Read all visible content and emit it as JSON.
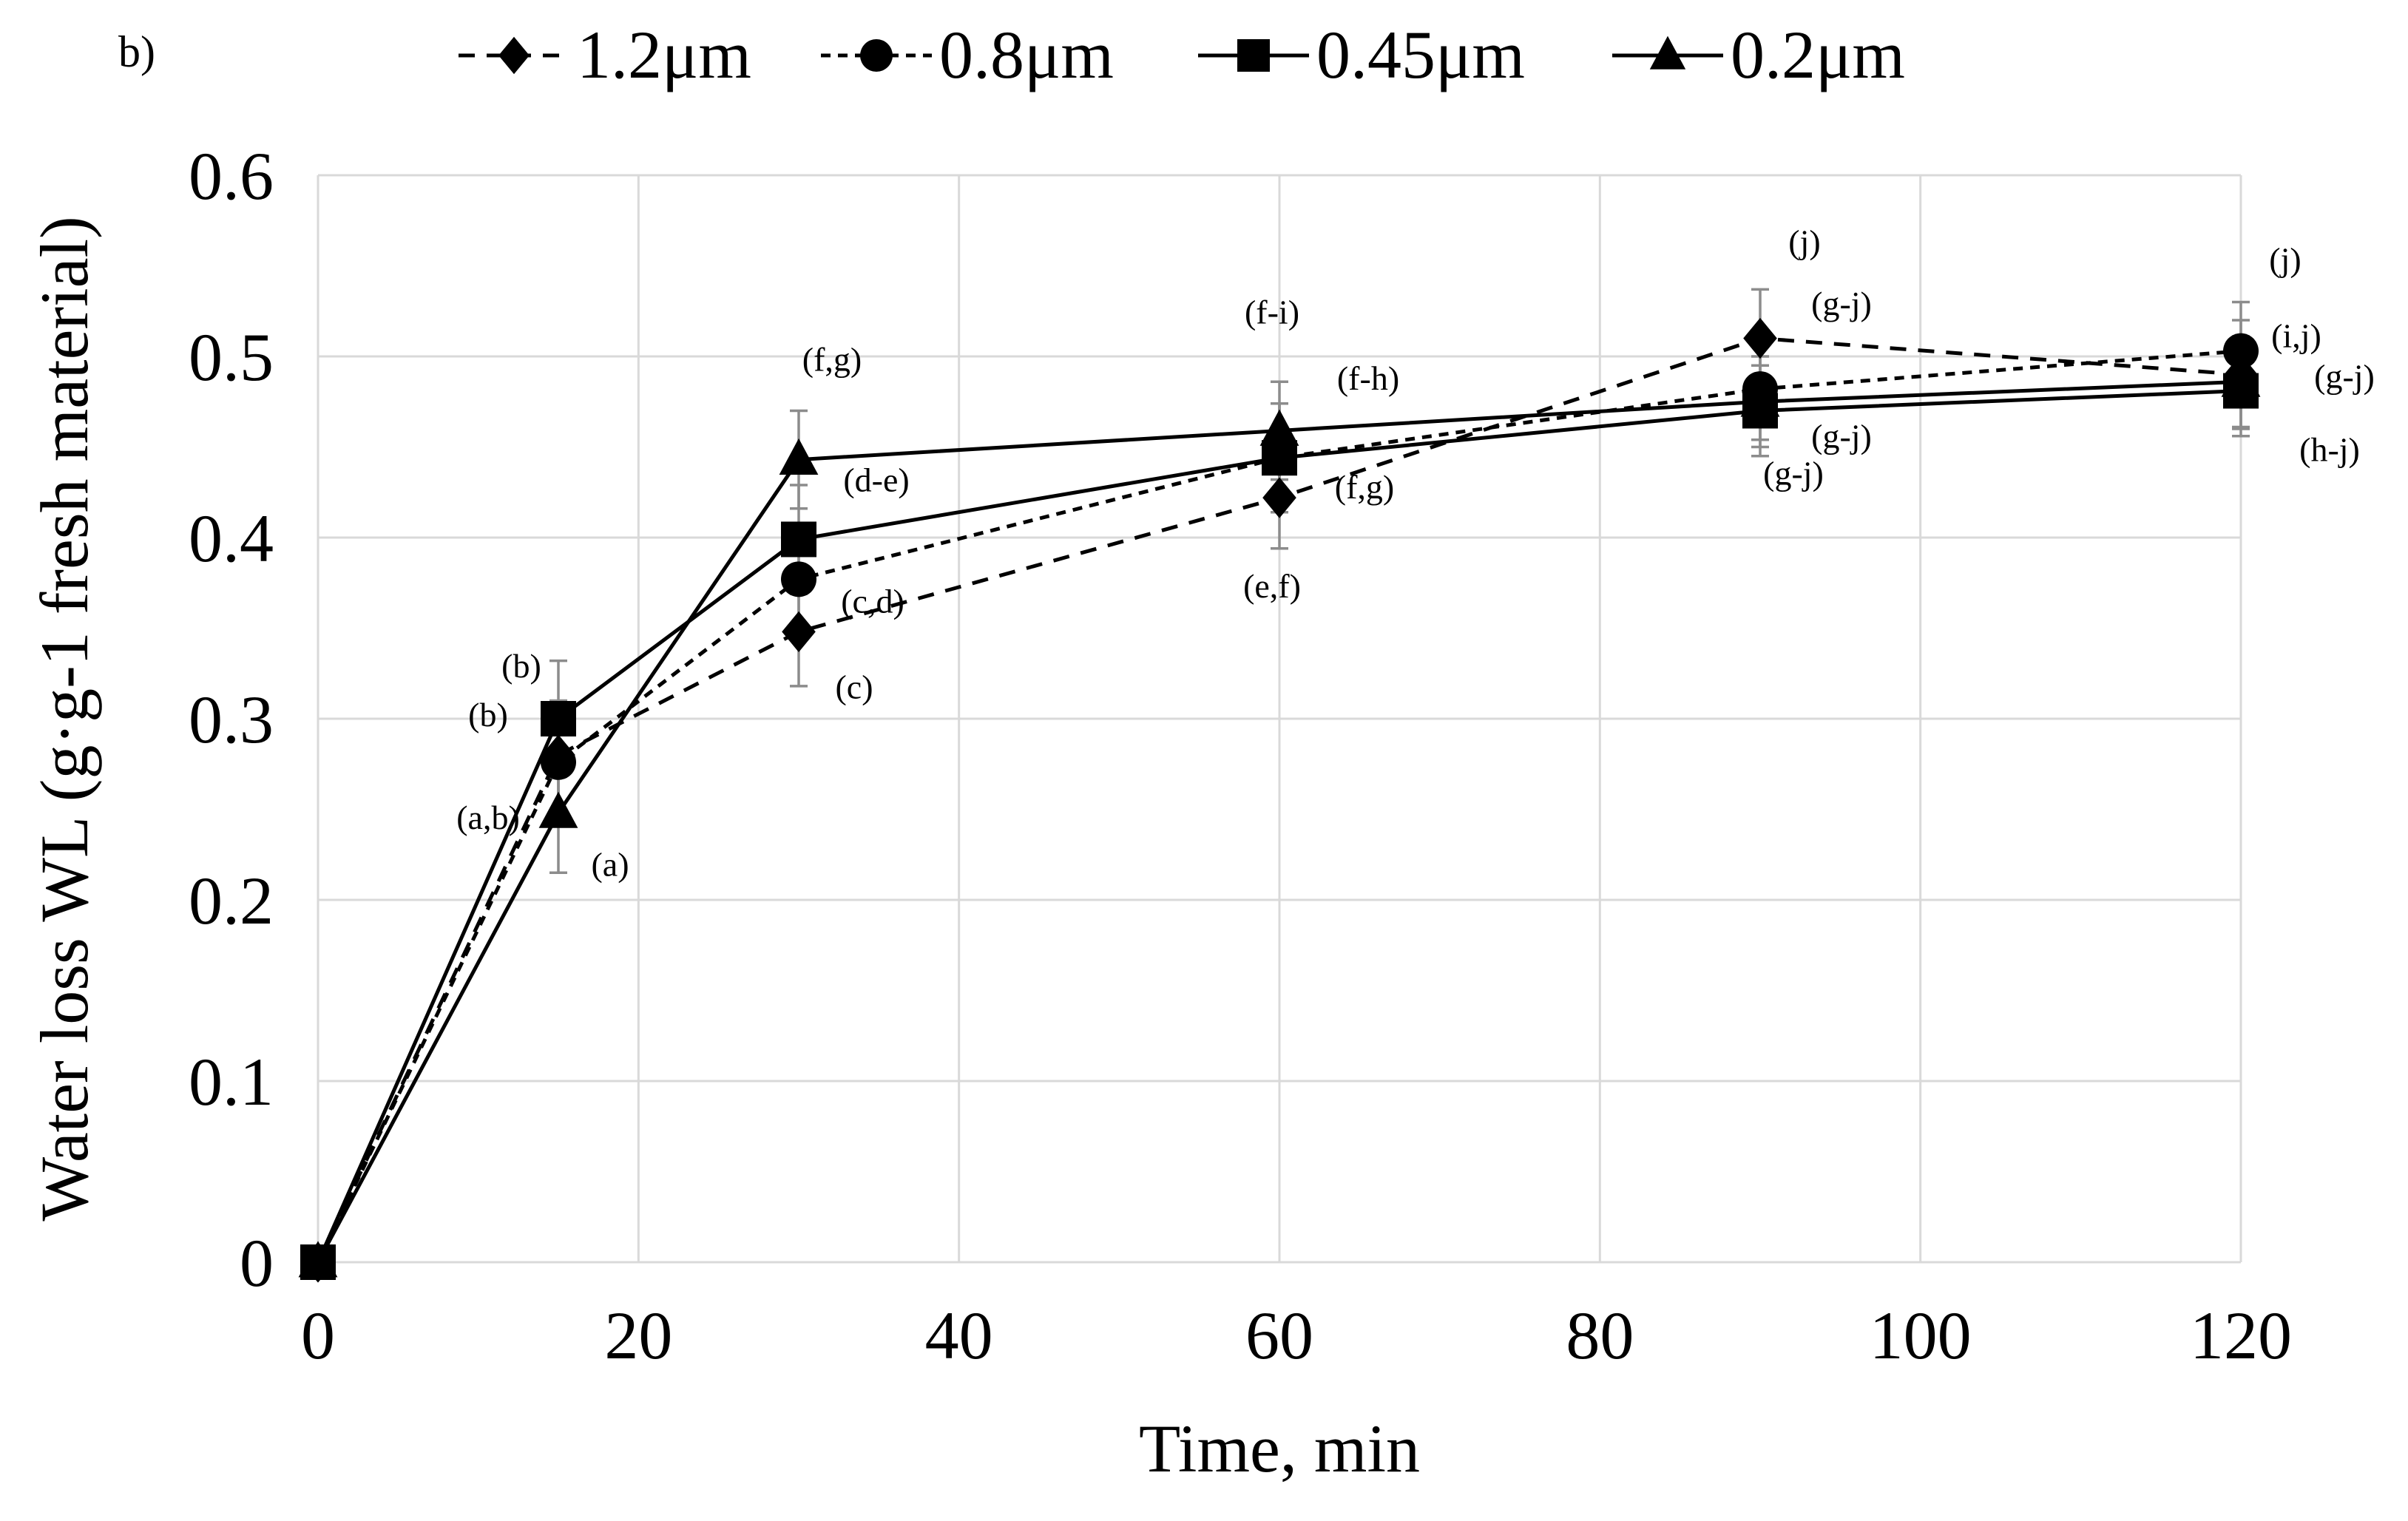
{
  "panel_label": "b)",
  "chart_data": {
    "type": "line",
    "title": "",
    "xlabel": "Time, min",
    "ylabel": "Water loss WL (g·g-1 fresh material)",
    "xlim": [
      0,
      120
    ],
    "ylim": [
      0,
      0.6
    ],
    "x_ticks": [
      0,
      20,
      40,
      60,
      80,
      100,
      120
    ],
    "y_ticks": [
      0,
      0.1,
      0.2,
      0.3,
      0.4,
      0.5,
      0.6
    ],
    "x_tick_labels": [
      "0",
      "20",
      "40",
      "60",
      "80",
      "100",
      "120"
    ],
    "y_tick_labels": [
      "0",
      "0.1",
      "0.2",
      "0.3",
      "0.4",
      "0.5",
      "0.6"
    ],
    "grid": true,
    "legend_position": "top",
    "x": [
      0,
      15,
      30,
      60,
      90,
      120
    ],
    "series": [
      {
        "name": "1.2μm",
        "marker": "diamond",
        "dash": "dashed",
        "values": [
          0,
          0.28,
          0.348,
          0.422,
          0.51,
          0.49
        ],
        "errors": [
          0,
          0.03,
          0.03,
          0.028,
          0.027,
          0.03
        ],
        "annotations": [
          "",
          "(a,b)",
          "(c)",
          "(e,f)",
          "(j)",
          "(j)"
        ]
      },
      {
        "name": "0.8μm",
        "marker": "circle",
        "dash": "dashed-dense",
        "values": [
          0,
          0.276,
          0.377,
          0.444,
          0.482,
          0.503
        ],
        "errors": [
          0,
          0.03,
          0.03,
          0.03,
          0.028,
          0.027
        ],
        "annotations": [
          "",
          "(b)",
          "(c,d)",
          "(f,g)",
          "(g-j)",
          "(i,j)"
        ]
      },
      {
        "name": "0.45μm",
        "marker": "square",
        "dash": "solid",
        "values": [
          0,
          0.3,
          0.399,
          0.444,
          0.47,
          0.481
        ],
        "errors": [
          0,
          0.032,
          0.03,
          0.03,
          0.025,
          0.025
        ],
        "annotations": [
          "",
          "(b)",
          "(d-e)",
          "(f-h)",
          "(g-j)",
          "(h-j)"
        ]
      },
      {
        "name": "0.2μm",
        "marker": "triangle",
        "dash": "solid",
        "values": [
          0,
          0.248,
          0.443,
          0.459,
          0.475,
          0.486
        ],
        "errors": [
          0,
          0.033,
          0.027,
          0.027,
          0.025,
          0.025
        ],
        "annotations": [
          "",
          "(a)",
          "(f,g)",
          "(f-i)",
          "(g-j)",
          "(g-j)"
        ]
      }
    ]
  }
}
